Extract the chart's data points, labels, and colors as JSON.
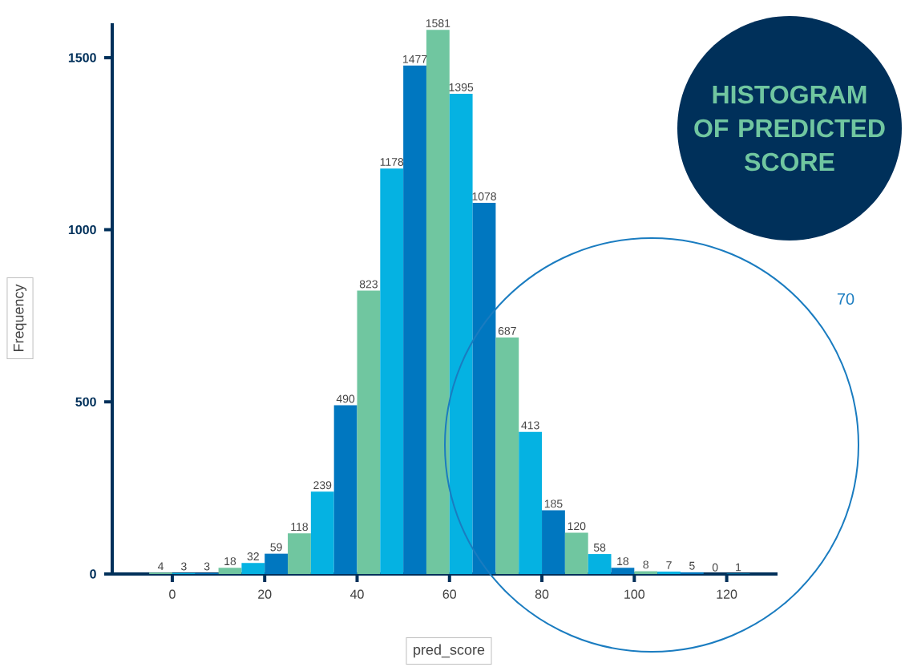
{
  "chart_data": {
    "type": "histogram",
    "title": "HISTOGRAM OF PREDICTED SCORE",
    "xlabel": "pred_score",
    "ylabel": "Frequency",
    "bins": [
      -5,
      0,
      5,
      10,
      15,
      20,
      25,
      30,
      35,
      40,
      45,
      50,
      55,
      60,
      65,
      70,
      75,
      80,
      85,
      90,
      95,
      100,
      105,
      110,
      115,
      120,
      125
    ],
    "values": [
      4,
      3,
      3,
      18,
      32,
      59,
      118,
      239,
      490,
      823,
      1178,
      1477,
      1581,
      1395,
      1078,
      687,
      413,
      185,
      120,
      58,
      18,
      8,
      7,
      5,
      0,
      1
    ],
    "colors": [
      "#70c6a0",
      "#05b2e2",
      "#0077c0",
      "#70c6a0",
      "#05b2e2",
      "#0077c0",
      "#70c6a0",
      "#05b2e2",
      "#0077c0",
      "#70c6a0",
      "#05b2e2",
      "#0077c0",
      "#70c6a0",
      "#05b2e2",
      "#0077c0",
      "#70c6a0",
      "#05b2e2",
      "#0077c0",
      "#70c6a0",
      "#05b2e2",
      "#0077c0",
      "#70c6a0",
      "#05b2e2",
      "#0077c0",
      "#70c6a0",
      "#05b2e2"
    ],
    "xlim": [
      -13,
      131
    ],
    "ylim": [
      0,
      1600
    ],
    "xticks": [
      0,
      20,
      40,
      60,
      80,
      100,
      120
    ],
    "yticks": [
      0,
      500,
      1000,
      1500
    ],
    "data_labels": true,
    "annotations": [
      "70"
    ]
  }
}
